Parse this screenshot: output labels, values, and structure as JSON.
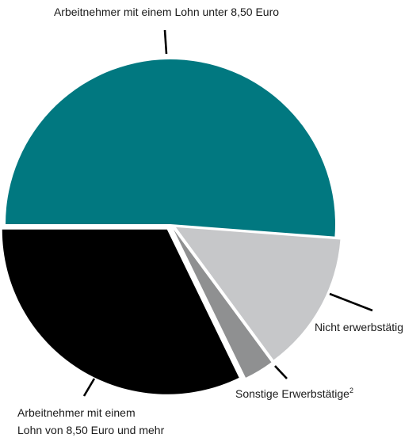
{
  "chart_data": {
    "type": "pie",
    "title": "",
    "slices": [
      {
        "label_lines": [
          "Arbeitnehmer mit einem Lohn unter 8,50 Euro"
        ],
        "value": 51.2,
        "color": "#017880",
        "exploded": false
      },
      {
        "label_lines": [
          "Nicht erwerbstätig"
        ],
        "value": 13.7,
        "color": "#c6c7c9",
        "exploded": true
      },
      {
        "label_lines": [
          "Sonstige Erwerbstätige",
          "2"
        ],
        "value": 2.9,
        "color": "#8f9091",
        "exploded": true
      },
      {
        "label_lines": [
          "Arbeitnehmer mit einem",
          "Lohn von 8,50 Euro und mehr"
        ],
        "value": 32.2,
        "color": "#000000",
        "exploded": true
      }
    ],
    "start_direction": "west",
    "direction": "clockwise",
    "unit": "%"
  }
}
